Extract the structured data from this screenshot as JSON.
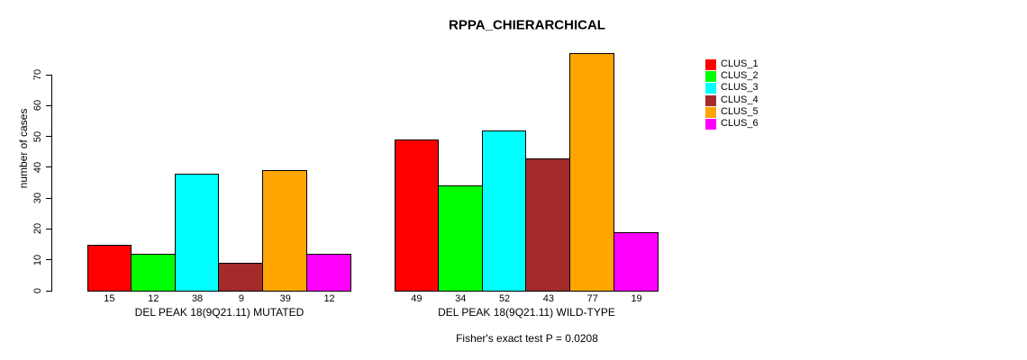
{
  "title": "RPPA_CHIERARCHICAL",
  "chart_data": {
    "type": "bar",
    "title": "RPPA_CHIERARCHICAL",
    "xlabel": "",
    "ylabel": "number of cases",
    "ylim": [
      0,
      70
    ],
    "yticks": [
      0,
      10,
      20,
      30,
      40,
      50,
      60,
      70
    ],
    "series_names": [
      "CLUS_1",
      "CLUS_2",
      "CLUS_3",
      "CLUS_4",
      "CLUS_5",
      "CLUS_6"
    ],
    "series_colors": [
      "#ff0000",
      "#00ff00",
      "#00ffff",
      "#a52a2a",
      "#ffa500",
      "#ff00ff"
    ],
    "groups": [
      {
        "label": "DEL PEAK 18(9Q21.11) MUTATED",
        "values": [
          15,
          12,
          38,
          9,
          39,
          12
        ]
      },
      {
        "label": "DEL PEAK 18(9Q21.11) WILD-TYPE",
        "values": [
          49,
          34,
          52,
          43,
          77,
          19
        ]
      }
    ],
    "legend_position": "right",
    "grid": false,
    "footnote": "Fisher's exact test P = 0.0208"
  },
  "legend": {
    "items": [
      {
        "label": "CLUS_1",
        "color": "#ff0000"
      },
      {
        "label": "CLUS_2",
        "color": "#00ff00"
      },
      {
        "label": "CLUS_3",
        "color": "#00ffff"
      },
      {
        "label": "CLUS_4",
        "color": "#a52a2a"
      },
      {
        "label": "CLUS_5",
        "color": "#ffa500"
      },
      {
        "label": "CLUS_6",
        "color": "#ff00ff"
      }
    ]
  }
}
